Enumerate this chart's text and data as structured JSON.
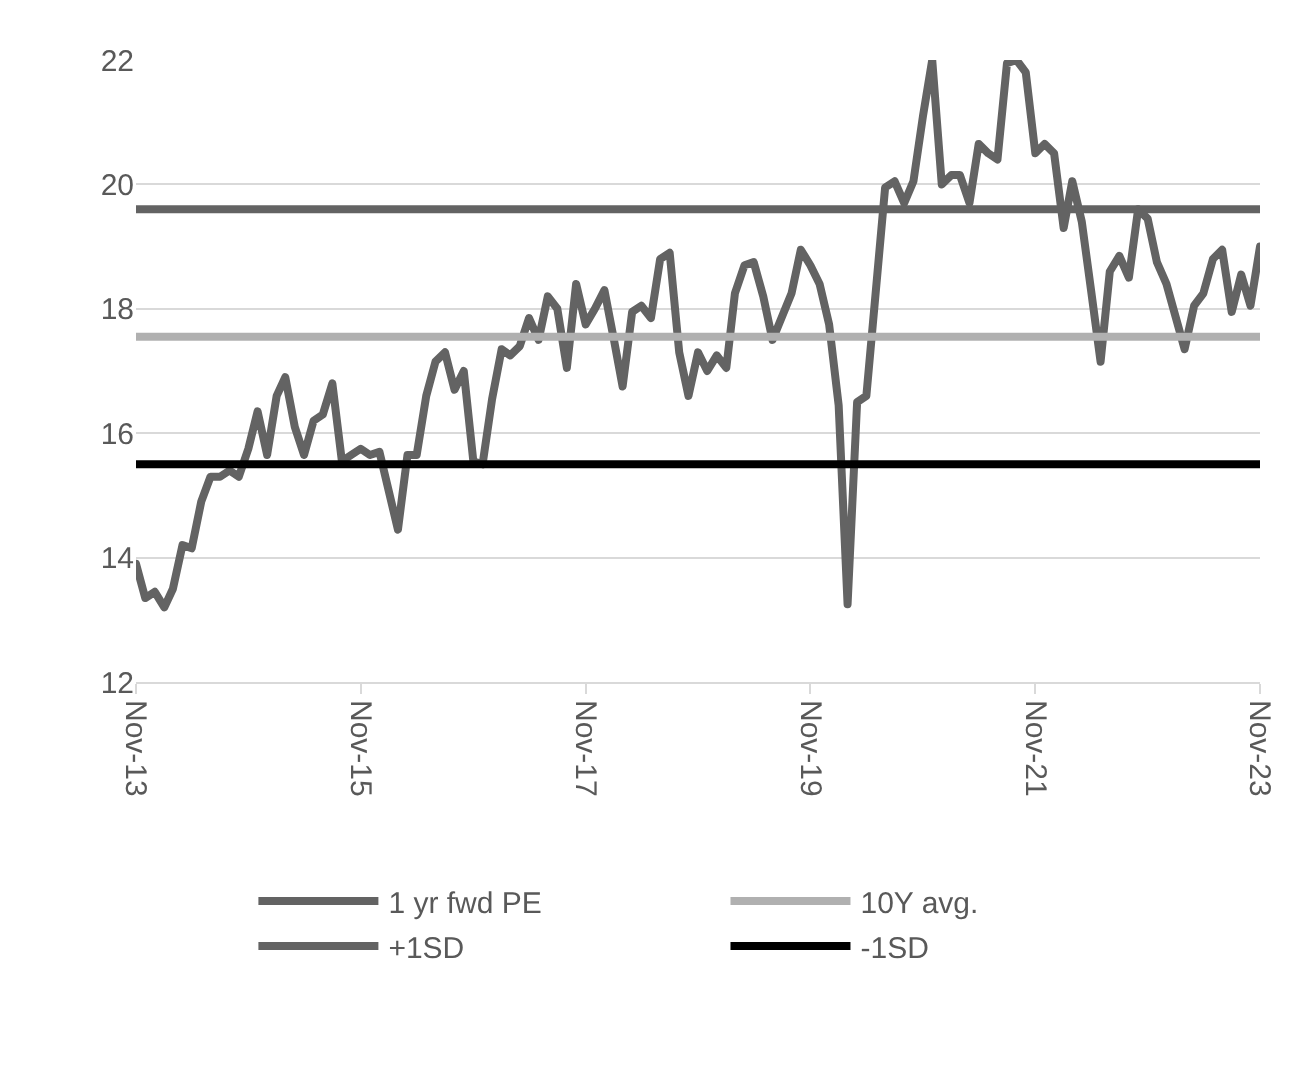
{
  "chart_data": {
    "type": "line",
    "xlim": [
      "2013-11",
      "2023-11"
    ],
    "xticks": [
      {
        "value": "2013-11",
        "label": "Nov-13"
      },
      {
        "value": "2015-11",
        "label": "Nov-15"
      },
      {
        "value": "2017-11",
        "label": "Nov-17"
      },
      {
        "value": "2019-11",
        "label": "Nov-19"
      },
      {
        "value": "2021-11",
        "label": "Nov-21"
      },
      {
        "value": "2023-11",
        "label": "Nov-23"
      }
    ],
    "ylim": [
      12,
      22
    ],
    "yticks": [
      12,
      14,
      16,
      18,
      20,
      22
    ],
    "grid": "y",
    "legend": "bottom",
    "marker": "none",
    "line_style": "solid",
    "series": [
      {
        "name": "1 yr fwd PE",
        "color": "#636363",
        "x": [
          "2013-11",
          "2013-12",
          "2014-01",
          "2014-02",
          "2014-03",
          "2014-04",
          "2014-05",
          "2014-06",
          "2014-07",
          "2014-08",
          "2014-09",
          "2014-10",
          "2014-11",
          "2014-12",
          "2015-01",
          "2015-02",
          "2015-03",
          "2015-04",
          "2015-05",
          "2015-06",
          "2015-07",
          "2015-08",
          "2015-09",
          "2015-10",
          "2015-11",
          "2015-12",
          "2016-01",
          "2016-03",
          "2016-04",
          "2016-05",
          "2016-06",
          "2016-07",
          "2016-08",
          "2016-09",
          "2016-10",
          "2016-11",
          "2016-12",
          "2017-01",
          "2017-02",
          "2017-03",
          "2017-04",
          "2017-05",
          "2017-06",
          "2017-07",
          "2017-08",
          "2017-09",
          "2017-10",
          "2017-11",
          "2017-12",
          "2018-01",
          "2018-02",
          "2018-03",
          "2018-04",
          "2018-05",
          "2018-06",
          "2018-07",
          "2018-08",
          "2018-09",
          "2018-10",
          "2018-11",
          "2018-12",
          "2019-01",
          "2019-02",
          "2019-03",
          "2019-04",
          "2019-05",
          "2019-06",
          "2019-07",
          "2019-09",
          "2019-10",
          "2019-11",
          "2019-12",
          "2020-01",
          "2020-02",
          "2020-03",
          "2020-04",
          "2020-05",
          "2020-06",
          "2020-07",
          "2020-08",
          "2020-09",
          "2020-10",
          "2020-11",
          "2020-12",
          "2021-01",
          "2021-02",
          "2021-03",
          "2021-04",
          "2021-05",
          "2021-06",
          "2021-07",
          "2021-08",
          "2021-09",
          "2021-10",
          "2021-11",
          "2021-12",
          "2022-01",
          "2022-02",
          "2022-03",
          "2022-04",
          "2022-05",
          "2022-06",
          "2022-07",
          "2022-08",
          "2022-09",
          "2022-10",
          "2022-11",
          "2022-12",
          "2023-01",
          "2023-02",
          "2023-03",
          "2023-04",
          "2023-05",
          "2023-06",
          "2023-07",
          "2023-08",
          "2023-09",
          "2023-10",
          "2023-11"
        ],
        "values": [
          13.9,
          13.35,
          13.45,
          13.2,
          13.5,
          14.2,
          14.15,
          14.9,
          15.3,
          15.3,
          15.4,
          15.3,
          15.75,
          16.35,
          15.65,
          16.6,
          16.9,
          16.1,
          15.65,
          16.2,
          16.3,
          16.8,
          15.55,
          15.65,
          15.75,
          15.65,
          15.7,
          14.45,
          15.65,
          15.65,
          16.6,
          17.15,
          17.3,
          16.7,
          17.0,
          15.55,
          15.5,
          16.55,
          17.35,
          17.25,
          17.4,
          17.85,
          17.5,
          18.2,
          18.0,
          17.05,
          18.4,
          17.75,
          18.0,
          18.3,
          17.5,
          16.75,
          17.95,
          18.05,
          17.85,
          18.8,
          18.9,
          17.3,
          16.6,
          17.3,
          17.0,
          17.25,
          17.05,
          18.25,
          18.7,
          18.75,
          18.2,
          17.5,
          18.25,
          18.95,
          18.7,
          18.4,
          17.75,
          16.45,
          13.25,
          16.5,
          16.6,
          18.3,
          19.95,
          20.05,
          19.7,
          20.05,
          21.1,
          22.0,
          20.0,
          20.15,
          20.15,
          19.7,
          20.65,
          20.5,
          20.4,
          21.95,
          22.0,
          21.8,
          20.5,
          20.65,
          20.5,
          19.3,
          20.05,
          19.4,
          18.3,
          17.15,
          18.6,
          18.85,
          18.5,
          19.6,
          19.45,
          18.75,
          18.4,
          17.85,
          17.35,
          18.05,
          18.25,
          18.8,
          18.95,
          17.95,
          18.55,
          18.05,
          19.0
        ]
      },
      {
        "name": "10Y avg.",
        "color": "#b0b0b0",
        "x": [
          "2013-11",
          "2023-11"
        ],
        "values": [
          17.55,
          17.55
        ]
      },
      {
        "name": "+1SD",
        "color": "#636363",
        "x": [
          "2013-11",
          "2023-11"
        ],
        "values": [
          19.6,
          19.6
        ]
      },
      {
        "name": "-1SD",
        "color": "#000000",
        "x": [
          "2013-11",
          "2023-11"
        ],
        "values": [
          15.5,
          15.5
        ]
      }
    ]
  }
}
